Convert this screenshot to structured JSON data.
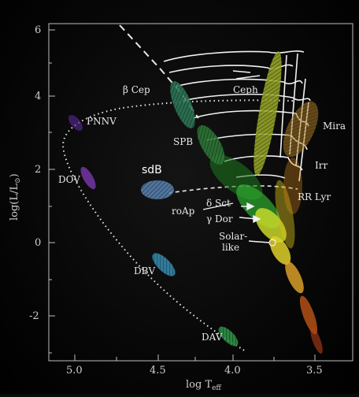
{
  "axes": {
    "x_label": "log T",
    "x_label_sub": "eff",
    "y_label": "log(L/L",
    "y_label_sym": "⊙",
    "y_label_close": ")",
    "x_ticks": [
      "5.0",
      "4.5",
      "4.0",
      "3.5"
    ],
    "y_ticks": [
      "6",
      "4",
      "2",
      "0",
      "-2"
    ]
  },
  "labels": {
    "beta_cep": "β Cep",
    "ceph": "Ceph",
    "pnnv": "PNNV",
    "mira": "Mira",
    "spb": "SPB",
    "sdb": "sdB",
    "irr": "Irr",
    "dov": "DOV",
    "rr_lyr": "RR Lyr",
    "roap": "roAp",
    "delta_sct": "δ Sct",
    "gamma_dor": "γ Dor",
    "solar_like_1": "Solar-",
    "solar_like_2": "like",
    "dbv": "DBV",
    "dav": "DAV"
  },
  "colors": {
    "background": "#000000",
    "beta_cep_region": "#2f7d5a",
    "spb_region": "#2f7d3a",
    "ceph_region": "#9fae2a",
    "mira_region": "#c08a2a",
    "sdb_region": "#5a86b5",
    "dov_region": "#7a3ab0",
    "dbv_region": "#3a8fb5",
    "dav_region": "#2f9a4a",
    "main_sequence_hot": "#2fae2f",
    "main_sequence_cool": "#d8c21a",
    "giant_branch": "#d86a1a"
  }
}
